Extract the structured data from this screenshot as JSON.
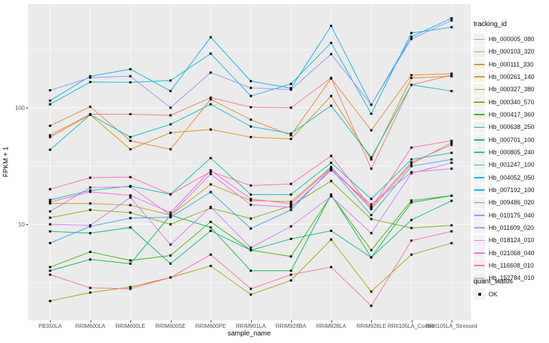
{
  "figure": {
    "y_axis": {
      "title": "FPKM + 1",
      "tick_labels": [
        "100",
        "10"
      ],
      "tick_values": [
        100,
        10
      ]
    },
    "x_axis": {
      "title": "sample_name"
    },
    "legend": {
      "title": "tracking_id"
    },
    "quant_legend": {
      "title": "quant_status",
      "items": [
        {
          "label": "OK",
          "marker": "black-square"
        }
      ]
    },
    "colors": {
      "panel_bg": "#EBEBEB",
      "grid": "#FFFFFF",
      "axis_text": "#4D4D4D",
      "point": "#000000"
    }
  },
  "chart_data": {
    "type": "line",
    "title": "",
    "xlabel": "sample_name",
    "ylabel": "FPKM + 1",
    "y_scale": "log10",
    "ylim": [
      1.5,
      800
    ],
    "grid": true,
    "legend_position": "right",
    "marker": "black square (quant_status = OK) on every point",
    "categories": [
      "PB350LA",
      "RRIM600LA",
      "RRIM600LE",
      "RRIM600SE",
      "RRIM600PE",
      "RRIM901LA",
      "RRIM928BA",
      "RRIM928LA",
      "RRIM928LE",
      "RRII105LA_Control",
      "RRII105LA_Stressed"
    ],
    "series": [
      {
        "name": "Hb_000005_080",
        "color": "#F8766D",
        "values": [
          58,
          88,
          88,
          86,
          122,
          101,
          100,
          180,
          30,
          157,
          190
        ]
      },
      {
        "name": "Hb_000103_320",
        "color": "#EA8331",
        "values": [
          70,
          102,
          52,
          44,
          118,
          79,
          58,
          178,
          64,
          190,
          196
        ]
      },
      {
        "name": "Hb_000111_330",
        "color": "#D89000",
        "values": [
          56,
          87,
          44,
          61,
          65,
          56,
          54,
          126,
          36,
          180,
          186
        ]
      },
      {
        "name": "Hb_000261_140",
        "color": "#C09B00",
        "values": [
          15.1,
          15.1,
          14.6,
          12,
          22,
          16,
          15.6,
          31,
          13.5,
          33,
          50
        ]
      },
      {
        "name": "Hb_000327_380",
        "color": "#A3A500",
        "values": [
          2.2,
          2.6,
          2.9,
          3.5,
          4.4,
          2.5,
          3.3,
          7.4,
          2.65,
          5.5,
          6.9
        ]
      },
      {
        "name": "Hb_000340_570",
        "color": "#7CAE00",
        "values": [
          11.4,
          13.3,
          12.6,
          10,
          13.8,
          11.2,
          14.4,
          23.5,
          11.1,
          9.3,
          9.8
        ]
      },
      {
        "name": "Hb_000417_360",
        "color": "#39B600",
        "values": [
          4.3,
          5.8,
          4.9,
          5.4,
          10.5,
          6.0,
          5.3,
          17.7,
          6.0,
          16,
          17.6
        ]
      },
      {
        "name": "Hb_000638_250",
        "color": "#00BB4E",
        "values": [
          4.0,
          5.0,
          4.6,
          12,
          9.4,
          4.0,
          4.0,
          18,
          5.2,
          15.4,
          17.6
        ]
      },
      {
        "name": "Hb_000701_100",
        "color": "#00BF7D",
        "values": [
          8.7,
          8.4,
          9.4,
          4.6,
          8.8,
          6.0,
          7.5,
          8.8,
          5.2,
          10.9,
          15.9
        ]
      },
      {
        "name": "Hb_000805_240",
        "color": "#00C1A3",
        "values": [
          16.2,
          19.5,
          21.3,
          18.1,
          37,
          18,
          18,
          33.7,
          16.5,
          36,
          41
        ]
      },
      {
        "name": "Hb_001247_100",
        "color": "#00BFC4",
        "values": [
          43.6,
          87,
          56,
          72,
          107,
          69,
          60,
          104,
          37.5,
          157,
          139
        ]
      },
      {
        "name": "Hb_004052_050",
        "color": "#00BAE0",
        "values": [
          107,
          166,
          165,
          171,
          291,
          126,
          160,
          360,
          88.8,
          437,
          490
        ]
      },
      {
        "name": "Hb_007192_100",
        "color": "#00B0F6",
        "values": [
          115,
          186,
          214,
          139,
          402,
          169,
          147,
          503,
          106,
          405,
          585
        ]
      },
      {
        "name": "Hb_009486_020",
        "color": "#35A2FF",
        "values": [
          6.9,
          9.6,
          11.3,
          11.5,
          18.9,
          9.2,
          13.3,
          30,
          12,
          31.5,
          36
        ]
      },
      {
        "name": "Hb_010175_040",
        "color": "#9590FF",
        "values": [
          141,
          181,
          186,
          100,
          200,
          148,
          143,
          288,
          106,
          388,
          560
        ]
      },
      {
        "name": "Hb_011609_020",
        "color": "#C77CFF",
        "values": [
          10.0,
          9.8,
          17,
          6.7,
          14.1,
          6.3,
          9.6,
          17.4,
          8.4,
          27.4,
          33.7
        ]
      },
      {
        "name": "Hb_018124_010",
        "color": "#E76BF3",
        "values": [
          12.9,
          20.7,
          21,
          12.0,
          27,
          14.7,
          14.0,
          29,
          14.8,
          28,
          30
        ]
      },
      {
        "name": "Hb_021068_040",
        "color": "#FA62DB",
        "values": [
          15.5,
          19,
          17.7,
          12.6,
          29,
          16.5,
          15.0,
          30.5,
          14.1,
          34,
          48
        ]
      },
      {
        "name": "Hb_116608_010",
        "color": "#FF62BC",
        "values": [
          20.0,
          25.1,
          25.4,
          18.1,
          28.3,
          21.5,
          22.2,
          38.6,
          13.8,
          45.5,
          52
        ]
      },
      {
        "name": "Hb_152784_010",
        "color": "#FF6A98",
        "values": [
          3.7,
          2.85,
          2.8,
          3.5,
          5.5,
          2.8,
          3.7,
          4.3,
          2.0,
          7.25,
          8.7
        ]
      }
    ]
  }
}
